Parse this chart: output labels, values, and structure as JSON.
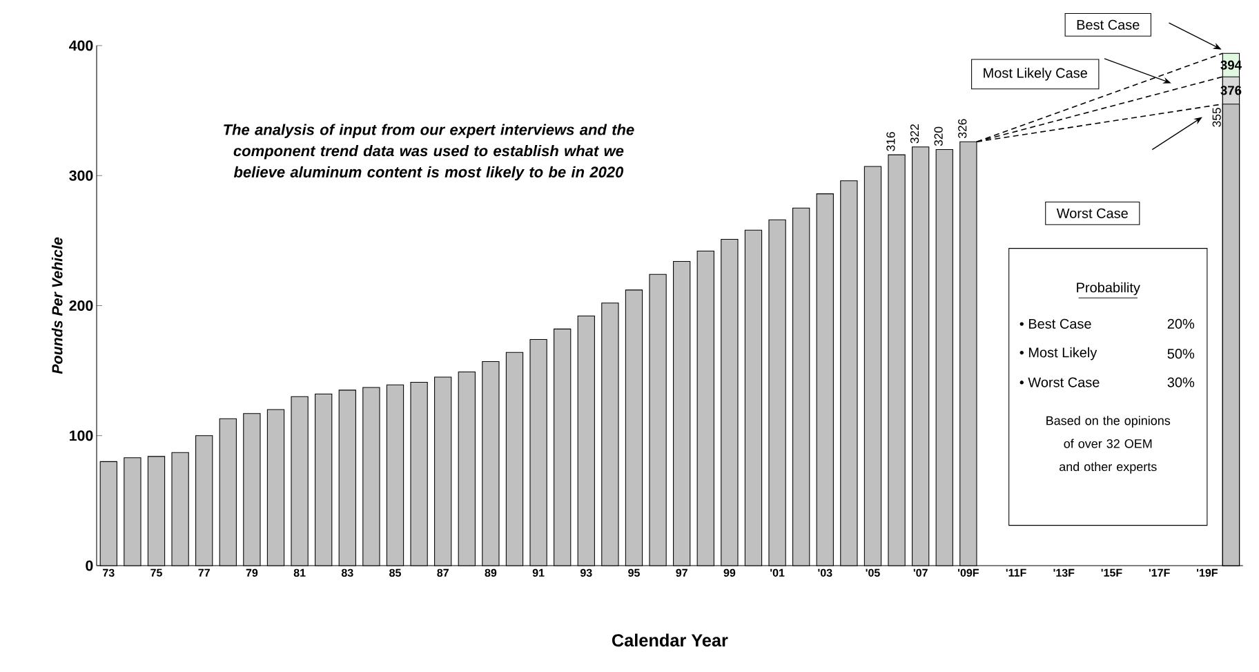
{
  "chart_data": {
    "type": "bar",
    "categories": [
      "73",
      null,
      "75",
      null,
      "77",
      null,
      "79",
      null,
      "81",
      null,
      "83",
      null,
      "85",
      null,
      "87",
      null,
      "89",
      null,
      "91",
      null,
      "93",
      null,
      "95",
      null,
      "97",
      null,
      "99",
      null,
      "'01",
      null,
      "'03",
      null,
      "'05",
      null,
      "'07",
      null,
      "'09F",
      null,
      "'11F",
      null,
      "'13F",
      null,
      "'15F",
      null,
      "'17F",
      null,
      "'19F",
      null
    ],
    "xlabel": "Calendar Year",
    "ylabel": "Pounds Per Vehicle",
    "ylim": [
      0,
      400
    ],
    "yticks": [
      0,
      100,
      200,
      300,
      400
    ],
    "series": [
      {
        "color": "#c0c0c0",
        "values": [
          80,
          83,
          84,
          87,
          100,
          113,
          117,
          120,
          130,
          132,
          135,
          137,
          139,
          141,
          145,
          149,
          157,
          164,
          174,
          182,
          192,
          202,
          212,
          224,
          234,
          242,
          251,
          258,
          266,
          275,
          286,
          296,
          307,
          316,
          322,
          320,
          326,
          null,
          null,
          null,
          null,
          null,
          null,
          null,
          null,
          null,
          null,
          355
        ],
        "value_labels": [
          null,
          null,
          null,
          null,
          null,
          null,
          null,
          null,
          null,
          null,
          null,
          null,
          null,
          null,
          null,
          null,
          null,
          null,
          null,
          null,
          null,
          null,
          null,
          null,
          null,
          null,
          null,
          null,
          null,
          null,
          null,
          null,
          null,
          "316",
          "322",
          "320",
          "326",
          null,
          null,
          null,
          null,
          null,
          null,
          null,
          null,
          null,
          null,
          "355"
        ]
      },
      {
        "color": "#d9d9d9",
        "values": [
          null,
          null,
          null,
          null,
          null,
          null,
          null,
          null,
          null,
          null,
          null,
          null,
          null,
          null,
          null,
          null,
          null,
          null,
          null,
          null,
          null,
          null,
          null,
          null,
          null,
          null,
          null,
          null,
          null,
          null,
          null,
          null,
          null,
          null,
          null,
          null,
          null,
          null,
          null,
          null,
          null,
          null,
          null,
          null,
          null,
          null,
          null,
          376
        ],
        "value_labels": [
          null,
          null,
          null,
          null,
          null,
          null,
          null,
          null,
          null,
          null,
          null,
          null,
          null,
          null,
          null,
          null,
          null,
          null,
          null,
          null,
          null,
          null,
          null,
          null,
          null,
          null,
          null,
          null,
          null,
          null,
          null,
          null,
          null,
          null,
          null,
          null,
          null,
          null,
          null,
          null,
          null,
          null,
          null,
          null,
          null,
          null,
          null,
          "376"
        ]
      },
      {
        "color": "#e0f8e0",
        "values": [
          null,
          null,
          null,
          null,
          null,
          null,
          null,
          null,
          null,
          null,
          null,
          null,
          null,
          null,
          null,
          null,
          null,
          null,
          null,
          null,
          null,
          null,
          null,
          null,
          null,
          null,
          null,
          null,
          null,
          null,
          null,
          null,
          null,
          null,
          null,
          null,
          null,
          null,
          null,
          null,
          null,
          null,
          null,
          null,
          null,
          null,
          null,
          394
        ],
        "value_labels": [
          null,
          null,
          null,
          null,
          null,
          null,
          null,
          null,
          null,
          null,
          null,
          null,
          null,
          null,
          null,
          null,
          null,
          null,
          null,
          null,
          null,
          null,
          null,
          null,
          null,
          null,
          null,
          null,
          null,
          null,
          null,
          null,
          null,
          null,
          null,
          null,
          null,
          null,
          null,
          null,
          null,
          null,
          null,
          null,
          null,
          null,
          null,
          "394"
        ]
      }
    ],
    "annotations": [
      "The analysis of input from our expert interviews and the component trend data was used to establish what we believe aluminum content is most likely to be in 2020",
      "Best Case",
      "Most Likely Case",
      "Worst Case",
      "Probability",
      "• Best Case",
      "20%",
      "• Most Likely",
      "50%",
      "• Worst Case",
      "30%",
      "Based on the opinions of over 32 OEM and other experts"
    ]
  }
}
